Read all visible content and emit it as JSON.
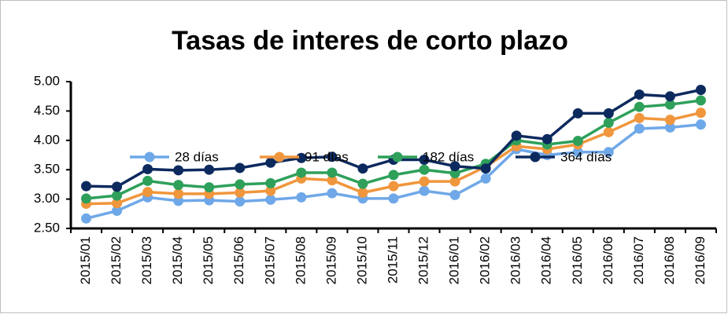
{
  "chart_data": {
    "type": "line",
    "title": "Tasas de interes de corto plazo",
    "categories": [
      "2015/01",
      "2015/02",
      "2015/03",
      "2015/04",
      "2015/05",
      "2015/06",
      "2015/07",
      "2015/08",
      "2015/09",
      "2015/10",
      "2015/11",
      "2015/12",
      "2016/01",
      "2016/02",
      "2016/03",
      "2016/04",
      "2016/05",
      "2016/06",
      "2016/07",
      "2016/08",
      "2016/09"
    ],
    "series": [
      {
        "name": "28 días",
        "color": "#6fa8e8",
        "values": [
          2.67,
          2.8,
          3.03,
          2.97,
          2.98,
          2.96,
          2.99,
          3.03,
          3.1,
          3.01,
          3.01,
          3.14,
          3.07,
          3.35,
          3.85,
          3.75,
          3.8,
          3.8,
          4.2,
          4.22,
          4.27
        ]
      },
      {
        "name": "91 días",
        "color": "#f0963c",
        "values": [
          2.92,
          2.93,
          3.12,
          3.09,
          3.09,
          3.11,
          3.14,
          3.35,
          3.32,
          3.11,
          3.22,
          3.3,
          3.3,
          3.55,
          3.9,
          3.85,
          3.93,
          4.14,
          4.38,
          4.35,
          4.47
        ]
      },
      {
        "name": "182 días",
        "color": "#2ea05a",
        "values": [
          3.01,
          3.06,
          3.31,
          3.24,
          3.2,
          3.25,
          3.27,
          3.45,
          3.45,
          3.26,
          3.41,
          3.5,
          3.44,
          3.6,
          4.0,
          3.93,
          3.99,
          4.3,
          4.57,
          4.61,
          4.68
        ]
      },
      {
        "name": "364 días",
        "color": "#0d2a5e",
        "values": [
          3.22,
          3.21,
          3.51,
          3.49,
          3.5,
          3.53,
          3.62,
          3.7,
          3.72,
          3.52,
          3.67,
          3.67,
          3.56,
          3.52,
          4.08,
          4.02,
          4.46,
          4.46,
          4.78,
          4.75,
          4.86
        ]
      }
    ],
    "ylim": [
      2.5,
      5
    ],
    "yticks": [
      {
        "value": 2.5,
        "label": "2.50"
      },
      {
        "value": 3,
        "label": "3.00"
      },
      {
        "value": 3.5,
        "label": "3.50"
      },
      {
        "value": 4,
        "label": "4.00"
      },
      {
        "value": 4.5,
        "label": "4.50"
      },
      {
        "value": 5,
        "label": "5.00"
      }
    ],
    "grid": false
  }
}
